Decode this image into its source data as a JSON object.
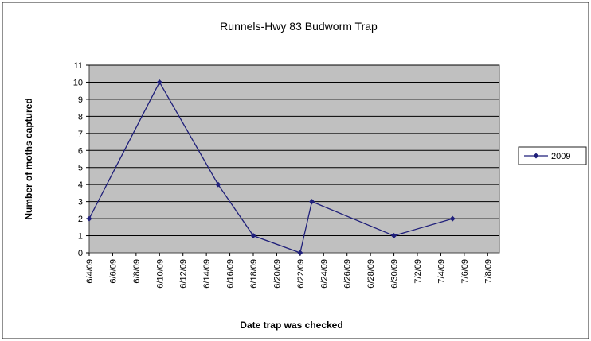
{
  "chart_data": {
    "type": "line",
    "title": "Runnels-Hwy 83 Budworm Trap",
    "xlabel": "Date trap was checked",
    "ylabel": "Number of moths captured",
    "ylim": [
      0,
      11
    ],
    "yticks": [
      0,
      1,
      2,
      3,
      4,
      5,
      6,
      7,
      8,
      9,
      10,
      11
    ],
    "xticks": [
      "6/4/09",
      "6/6/09",
      "6/8/09",
      "6/10/09",
      "6/12/09",
      "6/14/09",
      "6/16/09",
      "6/18/09",
      "6/20/09",
      "6/22/09",
      "6/24/09",
      "6/26/09",
      "6/28/09",
      "6/30/09",
      "7/2/09",
      "7/4/09",
      "7/6/09",
      "7/8/09"
    ],
    "xlim": [
      "6/4/09",
      "7/9/09"
    ],
    "grid": true,
    "legend_position": "right",
    "series": [
      {
        "name": "2009",
        "color": "#1f1f7a",
        "points": [
          {
            "x": "6/4/09",
            "y": 2
          },
          {
            "x": "6/10/09",
            "y": 10
          },
          {
            "x": "6/15/09",
            "y": 4
          },
          {
            "x": "6/18/09",
            "y": 1
          },
          {
            "x": "6/22/09",
            "y": 0
          },
          {
            "x": "6/23/09",
            "y": 3
          },
          {
            "x": "6/30/09",
            "y": 1
          },
          {
            "x": "7/5/09",
            "y": 2
          }
        ]
      }
    ]
  }
}
